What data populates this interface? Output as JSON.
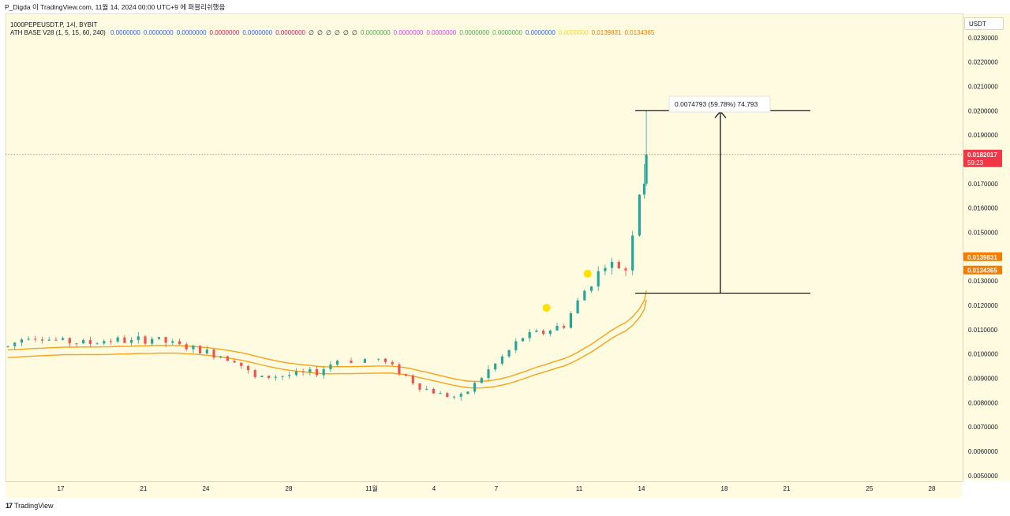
{
  "header": {
    "publish_line": "P_Digda 이 TradingView.com, 11월 14, 2024 00:00 UTC+9 에 퍼블리쉬했음",
    "symbol_line": "1000PEPEUSDT.P, 1시, BYBIT"
  },
  "indicator": {
    "name": "ATH BASE V28 (1, 5, 15, 60, 240)",
    "values": [
      {
        "text": "0.0000000",
        "color": "#2962ff"
      },
      {
        "text": "0.0000000",
        "color": "#2962ff"
      },
      {
        "text": "0.0000000",
        "color": "#2962ff"
      },
      {
        "text": "0.0000000",
        "color": "#d81b60"
      },
      {
        "text": "0.0000000",
        "color": "#2962ff"
      },
      {
        "text": "0.0000000",
        "color": "#d81b60"
      },
      {
        "text": "∅",
        "color": "#131722"
      },
      {
        "text": "∅",
        "color": "#131722"
      },
      {
        "text": "∅",
        "color": "#131722"
      },
      {
        "text": "∅",
        "color": "#131722"
      },
      {
        "text": "∅",
        "color": "#131722"
      },
      {
        "text": "∅",
        "color": "#131722"
      },
      {
        "text": "0.0000000",
        "color": "#4caf50"
      },
      {
        "text": "0.0000000",
        "color": "#e040fb"
      },
      {
        "text": "0.0000000",
        "color": "#e040fb"
      },
      {
        "text": "0.0000000",
        "color": "#4caf50"
      },
      {
        "text": "0.0000000",
        "color": "#4caf50"
      },
      {
        "text": "0.0000000",
        "color": "#2962ff"
      },
      {
        "text": "0.0000000",
        "color": "#fdd835"
      },
      {
        "text": "0.0139831",
        "color": "#f57c00"
      },
      {
        "text": "0.0134365",
        "color": "#f57c00"
      }
    ]
  },
  "axis": {
    "unit_label": "USDT",
    "colors": {
      "up": "#26a69a",
      "down": "#ef5350",
      "ma_upper": "#f7a21b",
      "ma_lower": "#f7a21b",
      "measure": "#000000",
      "marker": "#ffe000",
      "price_line": "#ef5350"
    }
  },
  "chart_data": {
    "type": "candlestick",
    "title": "",
    "ylim": [
      0.0048,
      0.024
    ],
    "y_ticks": [
      "0.0050000",
      "0.0060000",
      "0.0070000",
      "0.0080000",
      "0.0090000",
      "0.0100000",
      "0.0110000",
      "0.0120000",
      "0.0130000",
      "0.0140000",
      "0.0150000",
      "0.0160000",
      "0.0170000",
      "0.0180000",
      "0.0190000",
      "0.0200000",
      "0.0210000",
      "0.0220000",
      "0.0230000"
    ],
    "x_ticks": [
      "17",
      "21",
      "24",
      "28",
      "11월",
      "4",
      "7",
      "11",
      "14",
      "18",
      "21",
      "25",
      "28"
    ],
    "approx_close_path": [
      {
        "date": "10-15",
        "price": 0.0103
      },
      {
        "date": "10-16",
        "price": 0.0108
      },
      {
        "date": "10-17",
        "price": 0.0106
      },
      {
        "date": "10-18",
        "price": 0.0105
      },
      {
        "date": "10-19",
        "price": 0.01045
      },
      {
        "date": "10-20",
        "price": 0.0106
      },
      {
        "date": "10-21",
        "price": 0.0105
      },
      {
        "date": "10-22",
        "price": 0.01065
      },
      {
        "date": "10-23",
        "price": 0.0104
      },
      {
        "date": "10-24",
        "price": 0.0102
      },
      {
        "date": "10-25",
        "price": 0.01
      },
      {
        "date": "10-26",
        "price": 0.0098
      },
      {
        "date": "10-27",
        "price": 0.009
      },
      {
        "date": "10-28",
        "price": 0.0091
      },
      {
        "date": "10-29",
        "price": 0.00915
      },
      {
        "date": "10-30",
        "price": 0.00925
      },
      {
        "date": "10-31",
        "price": 0.00975
      },
      {
        "date": "11-01",
        "price": 0.0098
      },
      {
        "date": "11-02",
        "price": 0.0093
      },
      {
        "date": "11-03",
        "price": 0.00865
      },
      {
        "date": "11-04",
        "price": 0.00835
      },
      {
        "date": "11-05",
        "price": 0.0082
      },
      {
        "date": "11-06",
        "price": 0.00905
      },
      {
        "date": "11-07",
        "price": 0.00985
      },
      {
        "date": "11-08",
        "price": 0.0107
      },
      {
        "date": "11-09",
        "price": 0.0109
      },
      {
        "date": "11-10",
        "price": 0.0112
      },
      {
        "date": "11-11",
        "price": 0.0126
      },
      {
        "date": "11-12",
        "price": 0.0137
      },
      {
        "date": "11-13",
        "price": 0.0135
      },
      {
        "date": "11-14",
        "price": 0.0182
      }
    ],
    "last_price": {
      "value": "0.0182017",
      "countdown": "59:23"
    },
    "indicator_labels": [
      "0.0139831",
      "0.0134365"
    ],
    "measurement": {
      "text": "0.0074793 (59.78%) 74,793",
      "from": 0.0125,
      "to": 0.02
    },
    "markers": [
      {
        "date": "11-09",
        "price": 0.0119
      },
      {
        "date": "11-11",
        "price": 0.0133
      }
    ]
  },
  "footer": {
    "logo": "17",
    "brand": "TradingView"
  }
}
